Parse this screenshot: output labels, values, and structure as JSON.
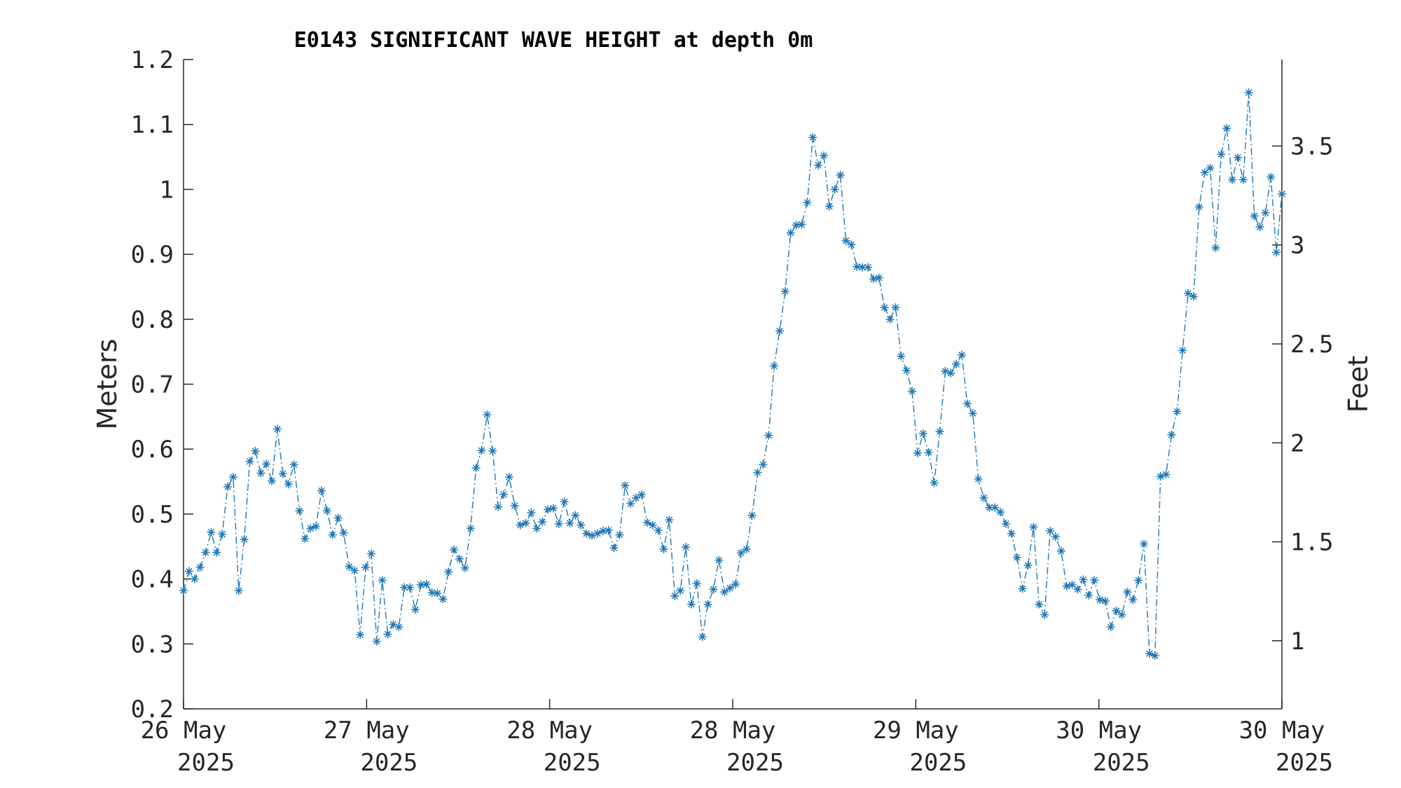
{
  "chart_data": {
    "type": "line",
    "title": "E0143 SIGNIFICANT WAVE HEIGHT at depth 0m",
    "xlabel": "",
    "ylabel": "Meters",
    "y2label": "Feet",
    "ylim": [
      0.2,
      1.2
    ],
    "y2lim_feet": [
      0.656,
      3.937
    ],
    "yticks": [
      "0.2",
      "0.3",
      "0.4",
      "0.5",
      "0.6",
      "0.7",
      "0.8",
      "0.9",
      "1",
      "1.1",
      "1.2"
    ],
    "y2ticks": [
      "1",
      "1.5",
      "2",
      "2.5",
      "3",
      "3.5"
    ],
    "xlim_days": [
      0,
      6
    ],
    "xticks": [
      {
        "line1": "26 May",
        "line2": "2025"
      },
      {
        "line1": "27 May",
        "line2": "2025"
      },
      {
        "line1": "28 May",
        "line2": "2025"
      },
      {
        "line1": "28 May",
        "line2": "2025"
      },
      {
        "line1": "29 May",
        "line2": "2025"
      },
      {
        "line1": "30 May",
        "line2": "2025"
      },
      {
        "line1": "30 May",
        "line2": "2025"
      }
    ],
    "grid": false,
    "line_color": "#1f77b4",
    "marker": "asterisk",
    "line_style": "dash-dot",
    "series": [
      {
        "name": "",
        "values": [
          0.382,
          0.412,
          0.4,
          0.418,
          0.441,
          0.472,
          0.441,
          0.469,
          0.542,
          0.557,
          0.382,
          0.461,
          0.581,
          0.597,
          0.563,
          0.577,
          0.551,
          0.631,
          0.562,
          0.546,
          0.576,
          0.505,
          0.462,
          0.478,
          0.481,
          0.536,
          0.505,
          0.468,
          0.494,
          0.471,
          0.419,
          0.413,
          0.314,
          0.418,
          0.439,
          0.304,
          0.398,
          0.315,
          0.33,
          0.326,
          0.387,
          0.387,
          0.353,
          0.391,
          0.392,
          0.379,
          0.378,
          0.369,
          0.411,
          0.445,
          0.431,
          0.417,
          0.478,
          0.571,
          0.598,
          0.653,
          0.597,
          0.511,
          0.53,
          0.557,
          0.513,
          0.483,
          0.486,
          0.502,
          0.478,
          0.488,
          0.507,
          0.509,
          0.485,
          0.519,
          0.486,
          0.498,
          0.483,
          0.47,
          0.467,
          0.47,
          0.474,
          0.475,
          0.448,
          0.468,
          0.544,
          0.516,
          0.525,
          0.53,
          0.487,
          0.483,
          0.475,
          0.446,
          0.491,
          0.374,
          0.382,
          0.449,
          0.361,
          0.393,
          0.311,
          0.361,
          0.384,
          0.429,
          0.38,
          0.386,
          0.392,
          0.44,
          0.446,
          0.498,
          0.564,
          0.576,
          0.621,
          0.728,
          0.782,
          0.843,
          0.933,
          0.945,
          0.946,
          0.98,
          1.08,
          1.037,
          1.052,
          0.974,
          1.0,
          1.022,
          0.921,
          0.915,
          0.881,
          0.88,
          0.88,
          0.862,
          0.864,
          0.818,
          0.8,
          0.818,
          0.743,
          0.721,
          0.689,
          0.594,
          0.624,
          0.595,
          0.548,
          0.627,
          0.72,
          0.717,
          0.731,
          0.745,
          0.67,
          0.655,
          0.554,
          0.525,
          0.51,
          0.51,
          0.503,
          0.485,
          0.47,
          0.433,
          0.385,
          0.421,
          0.48,
          0.361,
          0.345,
          0.474,
          0.465,
          0.443,
          0.389,
          0.391,
          0.384,
          0.399,
          0.375,
          0.398,
          0.368,
          0.366,
          0.326,
          0.351,
          0.345,
          0.38,
          0.368,
          0.398,
          0.454,
          0.285,
          0.282,
          0.558,
          0.561,
          0.622,
          0.658,
          0.752,
          0.84,
          0.835,
          0.973,
          1.026,
          1.033,
          0.91,
          1.054,
          1.094,
          1.015,
          1.049,
          1.015,
          1.149,
          0.959,
          0.942,
          0.964,
          1.019,
          0.903,
          0.993
        ]
      }
    ]
  }
}
